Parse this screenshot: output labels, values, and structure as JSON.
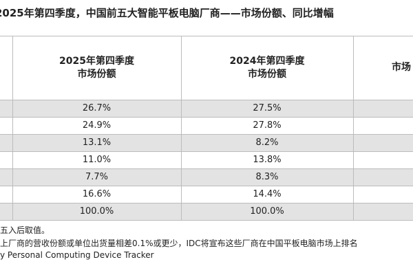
{
  "header": {
    "title": "2025年第四季度，中国前五大智能平板电脑厂商——市场份额、同比增幅"
  },
  "table": {
    "columns": [
      "2025年第四季度\n市场份额",
      "2024年第四季度\n市场份额",
      "市场"
    ],
    "rows": [
      [
        "26.7%",
        "27.5%"
      ],
      [
        "24.9%",
        "27.8%"
      ],
      [
        "13.1%",
        "8.2%"
      ],
      [
        "11.0%",
        "13.8%"
      ],
      [
        "7.7%",
        "8.3%"
      ],
      [
        "16.6%",
        "14.4%"
      ],
      [
        "100.0%",
        "100.0%"
      ]
    ]
  },
  "notes": [
    "五入后取值。",
    "上厂商的营收份额或单位出货量相差0.1%或更少，IDC将宣布这些厂商在中国平板电脑市场上排名",
    "y Personal Computing Device Tracker"
  ]
}
